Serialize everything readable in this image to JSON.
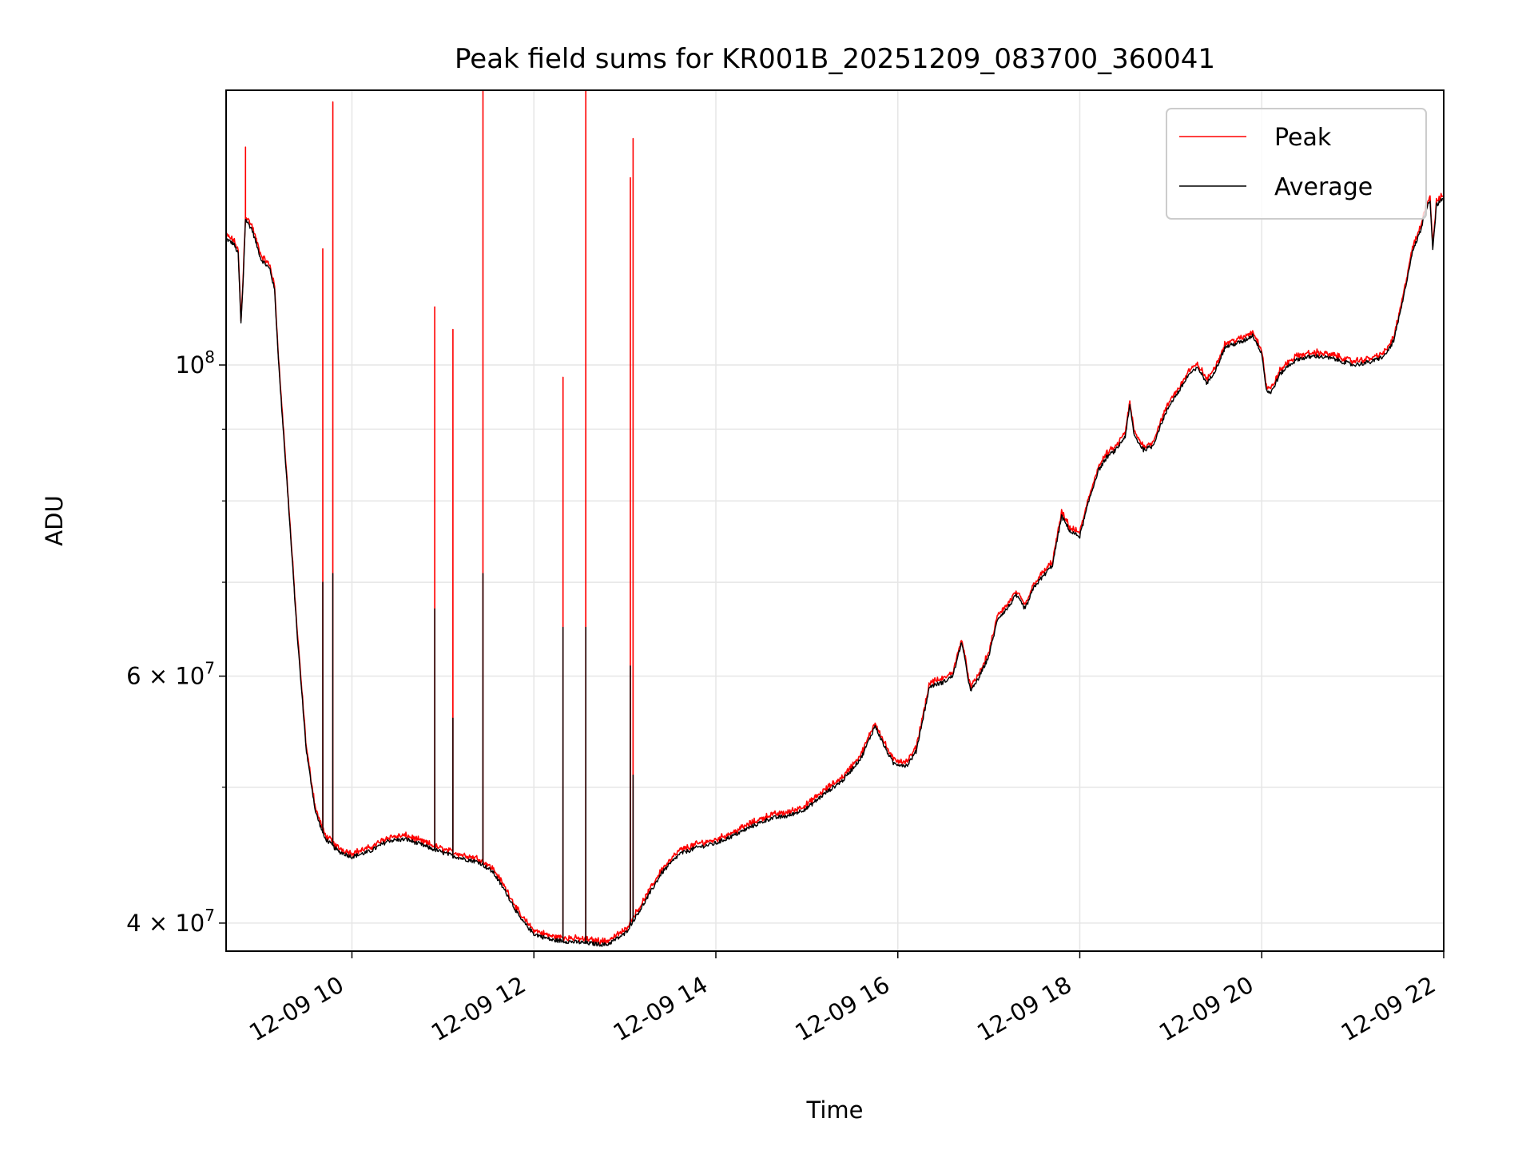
{
  "chart_data": {
    "type": "line",
    "title": "Peak field sums for KR001B_20251209_083700_360041",
    "xlabel": "Time",
    "ylabel": "ADU",
    "yscale": "log",
    "xlim": [
      8.617,
      22.0
    ],
    "ylim": [
      38200000,
      157000000
    ],
    "x_unit": "hours",
    "xticks": [
      {
        "value": 10,
        "label": "12-09 10"
      },
      {
        "value": 12,
        "label": "12-09 12"
      },
      {
        "value": 14,
        "label": "12-09 14"
      },
      {
        "value": 16,
        "label": "12-09 16"
      },
      {
        "value": 18,
        "label": "12-09 18"
      },
      {
        "value": 20,
        "label": "12-09 20"
      },
      {
        "value": 22,
        "label": "12-09 22"
      }
    ],
    "yticks_major": [
      {
        "value": 100000000,
        "base": "10",
        "exp": "8",
        "mant": ""
      },
      {
        "value": 60000000,
        "base": "10",
        "exp": "7",
        "mant": "6 × "
      },
      {
        "value": 40000000,
        "base": "10",
        "exp": "7",
        "mant": "4 × "
      }
    ],
    "yticks_minor": [
      50000000,
      70000000,
      80000000,
      90000000
    ],
    "grid": true,
    "legend_position": "top-right",
    "series": [
      {
        "name": "Peak",
        "color": "#ff0000"
      },
      {
        "name": "Average",
        "color": "#000000"
      }
    ],
    "average_curve": [
      [
        8.617,
        123000000
      ],
      [
        8.7,
        122000000
      ],
      [
        8.75,
        120000000
      ],
      [
        8.78,
        107000000
      ],
      [
        8.8,
        113000000
      ],
      [
        8.83,
        127000000
      ],
      [
        8.9,
        125000000
      ],
      [
        9.0,
        119000000
      ],
      [
        9.1,
        117000000
      ],
      [
        9.15,
        113000000
      ],
      [
        9.2,
        99000000
      ],
      [
        9.3,
        80000000
      ],
      [
        9.4,
        64000000
      ],
      [
        9.5,
        53000000
      ],
      [
        9.6,
        48000000
      ],
      [
        9.7,
        46000000
      ],
      [
        9.85,
        45000000
      ],
      [
        10.0,
        44600000
      ],
      [
        10.2,
        45000000
      ],
      [
        10.4,
        45800000
      ],
      [
        10.6,
        45900000
      ],
      [
        10.8,
        45400000
      ],
      [
        11.0,
        44900000
      ],
      [
        11.2,
        44500000
      ],
      [
        11.4,
        44200000
      ],
      [
        11.55,
        43500000
      ],
      [
        11.7,
        42000000
      ],
      [
        11.85,
        40300000
      ],
      [
        12.0,
        39300000
      ],
      [
        12.2,
        38900000
      ],
      [
        12.4,
        38800000
      ],
      [
        12.6,
        38700000
      ],
      [
        12.8,
        38600000
      ],
      [
        13.0,
        39300000
      ],
      [
        13.2,
        41200000
      ],
      [
        13.4,
        43400000
      ],
      [
        13.6,
        44800000
      ],
      [
        13.8,
        45300000
      ],
      [
        14.0,
        45600000
      ],
      [
        14.2,
        46200000
      ],
      [
        14.4,
        46900000
      ],
      [
        14.6,
        47500000
      ],
      [
        14.8,
        47700000
      ],
      [
        15.0,
        48300000
      ],
      [
        15.2,
        49500000
      ],
      [
        15.4,
        50600000
      ],
      [
        15.6,
        52500000
      ],
      [
        15.75,
        55300000
      ],
      [
        15.85,
        53500000
      ],
      [
        15.95,
        52000000
      ],
      [
        16.1,
        51800000
      ],
      [
        16.2,
        53000000
      ],
      [
        16.35,
        59000000
      ],
      [
        16.5,
        59400000
      ],
      [
        16.6,
        60000000
      ],
      [
        16.65,
        61500000
      ],
      [
        16.7,
        63500000
      ],
      [
        16.8,
        58500000
      ],
      [
        16.9,
        60000000
      ],
      [
        17.0,
        62000000
      ],
      [
        17.1,
        66000000
      ],
      [
        17.2,
        67000000
      ],
      [
        17.3,
        68500000
      ],
      [
        17.4,
        67000000
      ],
      [
        17.5,
        69500000
      ],
      [
        17.7,
        72000000
      ],
      [
        17.8,
        78000000
      ],
      [
        17.9,
        76000000
      ],
      [
        18.0,
        75500000
      ],
      [
        18.1,
        80000000
      ],
      [
        18.2,
        84000000
      ],
      [
        18.3,
        86000000
      ],
      [
        18.4,
        87000000
      ],
      [
        18.5,
        89000000
      ],
      [
        18.55,
        93500000
      ],
      [
        18.6,
        89000000
      ],
      [
        18.7,
        87000000
      ],
      [
        18.8,
        87500000
      ],
      [
        18.9,
        91000000
      ],
      [
        19.0,
        94000000
      ],
      [
        19.1,
        96000000
      ],
      [
        19.2,
        98500000
      ],
      [
        19.3,
        99500000
      ],
      [
        19.4,
        97000000
      ],
      [
        19.5,
        99500000
      ],
      [
        19.6,
        103000000
      ],
      [
        19.8,
        104000000
      ],
      [
        19.9,
        105000000
      ],
      [
        20.0,
        102000000
      ],
      [
        20.05,
        96000000
      ],
      [
        20.1,
        95500000
      ],
      [
        20.2,
        98500000
      ],
      [
        20.3,
        100000000
      ],
      [
        20.4,
        101000000
      ],
      [
        20.6,
        101500000
      ],
      [
        20.8,
        101000000
      ],
      [
        21.0,
        100000000
      ],
      [
        21.2,
        100500000
      ],
      [
        21.35,
        101500000
      ],
      [
        21.45,
        104000000
      ],
      [
        21.55,
        111000000
      ],
      [
        21.65,
        120000000
      ],
      [
        21.75,
        125000000
      ],
      [
        21.8,
        129000000
      ],
      [
        21.85,
        131000000
      ],
      [
        21.88,
        121000000
      ],
      [
        21.92,
        130000000
      ],
      [
        22.0,
        131500000
      ]
    ],
    "peak_spikes": [
      {
        "x": 8.83,
        "peak": 143000000,
        "avg": 127000000
      },
      {
        "x": 9.68,
        "peak": 121000000,
        "avg": 70000000
      },
      {
        "x": 9.79,
        "peak": 154000000,
        "avg": 71000000
      },
      {
        "x": 10.91,
        "peak": 110000000,
        "avg": 67000000
      },
      {
        "x": 11.11,
        "peak": 106000000,
        "avg": 56000000
      },
      {
        "x": 11.44,
        "peak": 157000000,
        "avg": 71000000
      },
      {
        "x": 12.32,
        "peak": 98000000,
        "avg": 65000000
      },
      {
        "x": 12.57,
        "peak": 157000000,
        "avg": 65000000
      },
      {
        "x": 13.06,
        "peak": 136000000,
        "avg": 61000000
      },
      {
        "x": 13.09,
        "peak": 145000000,
        "avg": 51000000
      }
    ]
  }
}
